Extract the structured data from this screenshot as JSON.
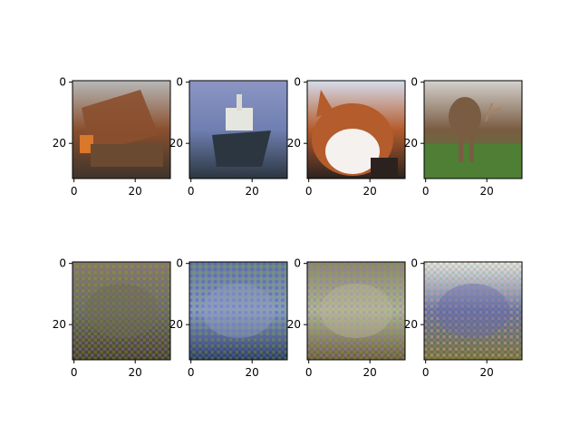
{
  "chart_data": {
    "type": "heatmap",
    "description_grid": "2 rows x 4 columns of 32x32 pixel images (matplotlib imshow)",
    "shared_axes": {
      "x_ticks": [
        0,
        20
      ],
      "y_ticks": [
        0,
        20
      ],
      "x_range": [
        -0.5,
        31.5
      ],
      "y_range": [
        31.5,
        -0.5
      ]
    },
    "panels": [
      {
        "id": "top-1",
        "row": 0,
        "col": 0,
        "content": "truck",
        "palette": {
          "top": "#b7b9b8",
          "mid": "#8a4f2e",
          "accent": "#d9772b",
          "bottom": "#3e342b"
        }
      },
      {
        "id": "top-2",
        "row": 0,
        "col": 1,
        "content": "ship",
        "palette": {
          "top": "#8c96c4",
          "mid": "#6f7fb1",
          "accent": "#e6e6e0",
          "bottom": "#2c3640"
        }
      },
      {
        "id": "top-3",
        "row": 0,
        "col": 2,
        "content": "cat",
        "palette": {
          "top": "#d5dcec",
          "mid": "#b45c2c",
          "accent": "#f4f1ee",
          "bottom": "#2b2220"
        }
      },
      {
        "id": "top-4",
        "row": 0,
        "col": 3,
        "content": "deer",
        "palette": {
          "top": "#d4d1cd",
          "mid": "#7a5c42",
          "accent": "#a58364",
          "bottom": "#4e7f34"
        }
      },
      {
        "id": "bottom-1",
        "row": 1,
        "col": 0,
        "content": "noisy reconstruction",
        "palette": {
          "top": "#8a7a55",
          "mid": "#6e6a55",
          "accent": "#7a6fb0",
          "bottom": "#4a3d22"
        }
      },
      {
        "id": "bottom-2",
        "row": 1,
        "col": 1,
        "content": "noisy reconstruction",
        "palette": {
          "top": "#6a7c8a",
          "mid": "#8e9cc4",
          "accent": "#4c5fc8",
          "bottom": "#2f3b52"
        }
      },
      {
        "id": "bottom-3",
        "row": 1,
        "col": 2,
        "content": "noisy reconstruction",
        "palette": {
          "top": "#8c8460",
          "mid": "#b8b59a",
          "accent": "#8a7ec0",
          "bottom": "#6e5a30"
        }
      },
      {
        "id": "bottom-4",
        "row": 1,
        "col": 3,
        "content": "noisy reconstruction",
        "palette": {
          "top": "#e8e8ec",
          "mid": "#6a6aa8",
          "accent": "#b8aa88",
          "bottom": "#7a6a38"
        }
      }
    ]
  }
}
